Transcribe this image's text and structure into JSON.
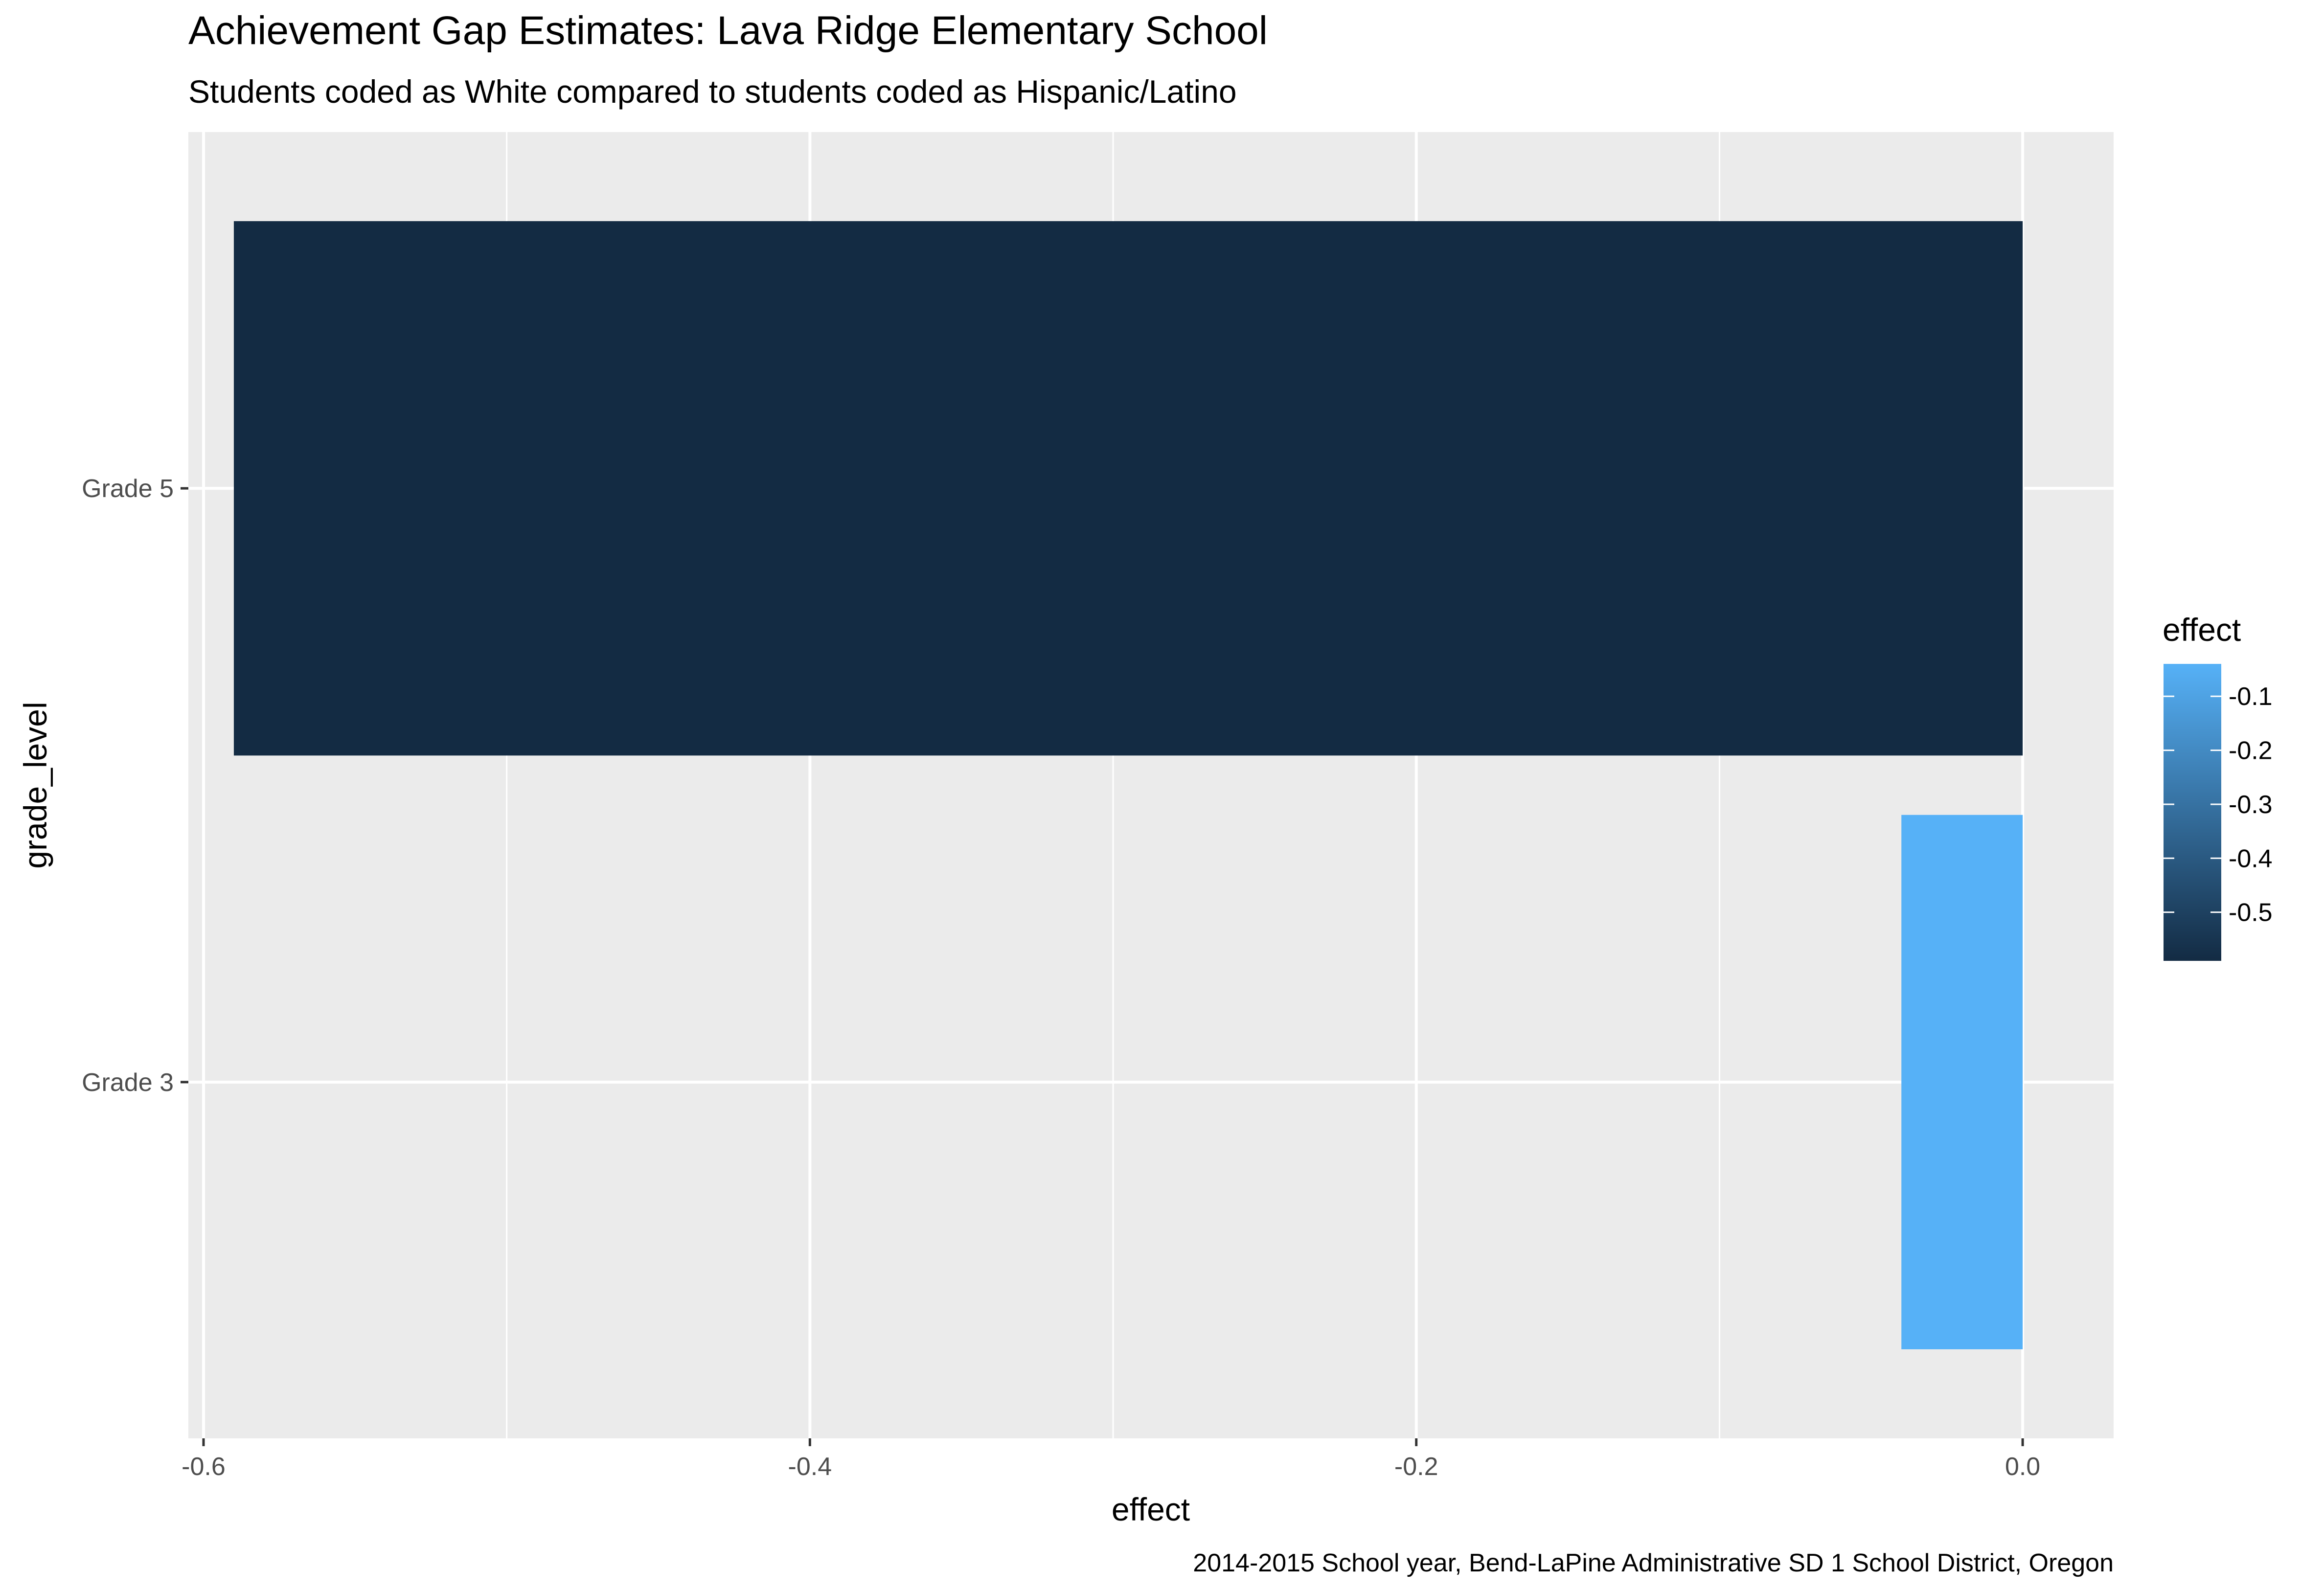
{
  "chart_data": {
    "type": "bar",
    "orientation": "horizontal",
    "title": "Achievement Gap Estimates: Lava Ridge Elementary School",
    "subtitle": "Students coded as White compared to students coded as Hispanic/Latino",
    "caption": "2014-2015 School year, Bend-LaPine Administrative SD 1 School District, Oregon",
    "xlabel": "effect",
    "ylabel": "grade_level",
    "categories": [
      "Grade 3",
      "Grade 5"
    ],
    "values": [
      -0.04,
      -0.59
    ],
    "xlim": [
      -0.605,
      0.03
    ],
    "xticks": [
      -0.6,
      -0.4,
      -0.2,
      0.0
    ],
    "xtick_labels": [
      "-0.6",
      "-0.4",
      "-0.2",
      "0.0"
    ],
    "grid": true,
    "legend": {
      "title": "effect",
      "placement": "right",
      "type": "colorbar",
      "range": [
        -0.59,
        -0.04
      ],
      "ticks": [
        -0.1,
        -0.2,
        -0.3,
        -0.4,
        -0.5
      ],
      "tick_labels": [
        "-0.1",
        "-0.2",
        "-0.3",
        "-0.4",
        "-0.5"
      ],
      "low_color": "#132B43",
      "high_color": "#56B1F7"
    },
    "colors": {
      "panel": "#EBEBEB",
      "grid": "#FFFFFF",
      "text": "#000000",
      "tick_text": "#4D4D4D"
    }
  }
}
